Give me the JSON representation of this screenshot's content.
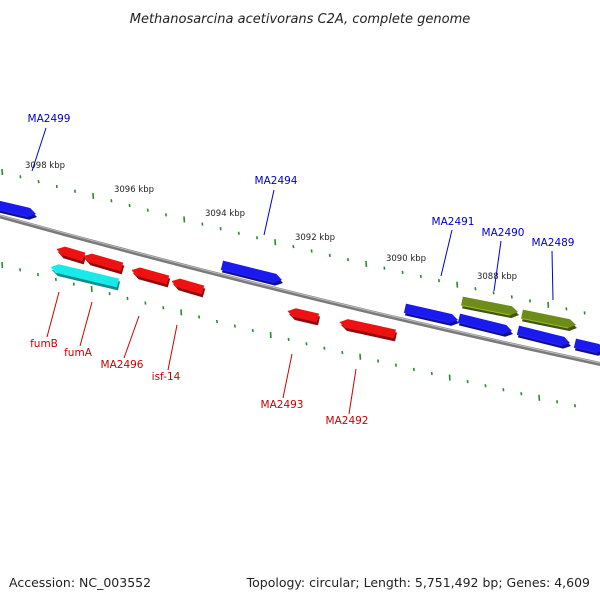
{
  "title": "Methanosarcina acetivorans C2A, complete genome",
  "footer": {
    "accession": "Accession: NC_003552",
    "summary": "Topology: circular; Length: 5,751,492 bp; Genes: 4,609"
  },
  "colors": {
    "backbone": "#7a7a7a",
    "tick": "#2a8a2a",
    "forward_label": "#0000cc",
    "reverse_label": "#cc0000",
    "forward_gene": "#1a1aee",
    "reverse_gene": "#ee1111",
    "rna_gene": "#19e9e9",
    "pseudo_gene": "#6e8c1a"
  },
  "ticks": {
    "unit": "kbp",
    "labels": [
      "3098 kbp",
      "3096 kbp",
      "3094 kbp",
      "3092 kbp",
      "3090 kbp",
      "3088 kbp"
    ]
  },
  "genes_forward": [
    {
      "kind": "forward"
    },
    {
      "kind": "forward",
      "label": "MA2494"
    },
    {
      "kind": "forward"
    },
    {
      "kind": "forward",
      "label": "MA2491"
    },
    {
      "kind": "forward",
      "label": "MA2490"
    },
    {
      "kind": "forward",
      "label": "MA2489"
    },
    {
      "kind": "forward"
    },
    {
      "kind": "pseudo"
    },
    {
      "kind": "pseudo"
    }
  ],
  "genes_reverse": [
    {
      "kind": "reverse"
    },
    {
      "kind": "reverse"
    },
    {
      "kind": "rna"
    },
    {
      "kind": "reverse",
      "label": "MA2496"
    },
    {
      "kind": "reverse",
      "label": "isf-14"
    },
    {
      "kind": "reverse",
      "label": "MA2493"
    },
    {
      "kind": "reverse",
      "label": "MA2492"
    }
  ],
  "extra_labels": [
    {
      "text": "MA2499",
      "strand": "forward"
    },
    {
      "text": "fumB",
      "strand": "reverse"
    },
    {
      "text": "fumA",
      "strand": "reverse"
    }
  ]
}
